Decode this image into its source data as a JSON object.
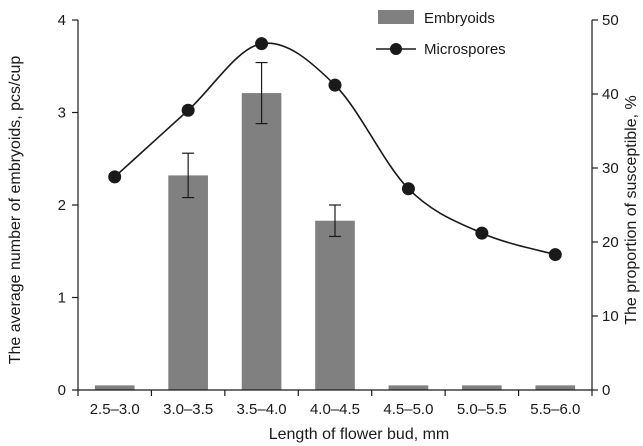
{
  "chart_data": {
    "type": "bar",
    "categories": [
      "2.5–3.0",
      "3.0–3.5",
      "3.5–4.0",
      "4.0–4.5",
      "4.5–5.0",
      "5.0–5.5",
      "5.5–6.0"
    ],
    "xlabel": "Length of flower bud, mm",
    "ylabel_left": "The average number of embryoids, pcs/cup",
    "ylabel_right": "The proportion of susceptible, %",
    "ylim_left": [
      0,
      4
    ],
    "ylim_right": [
      0,
      50
    ],
    "yticks_left": [
      "0",
      "1",
      "2",
      "3",
      "4"
    ],
    "yticks_right": [
      "0",
      "10",
      "20",
      "30",
      "40",
      "50"
    ],
    "grid": false,
    "legend_position": "top-right",
    "series": [
      {
        "name": "Embryoids",
        "kind": "bar",
        "axis": "left",
        "color": "#808080",
        "values": [
          0.05,
          2.32,
          3.21,
          1.83,
          0.05,
          0.05,
          0.05
        ],
        "error": [
          0,
          0.24,
          0.33,
          0.17,
          0,
          0,
          0
        ]
      },
      {
        "name": "Microspores",
        "kind": "line",
        "axis": "right",
        "color": "#1a1a1a",
        "marker": "circle",
        "smooth": true,
        "values": [
          28.8,
          37.8,
          46.8,
          41.2,
          27.2,
          21.2,
          18.3
        ]
      }
    ]
  }
}
